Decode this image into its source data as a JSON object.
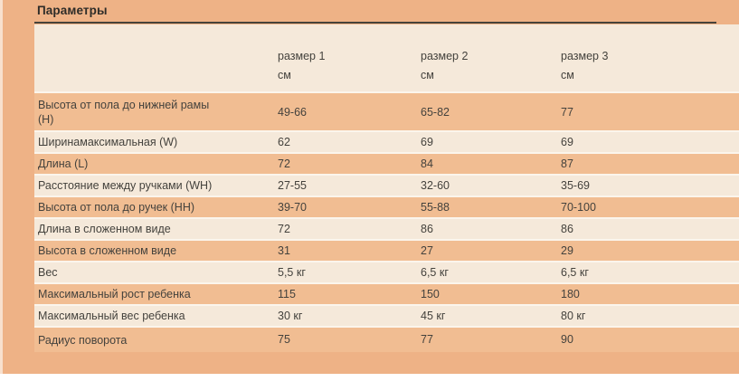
{
  "title": "Параметры",
  "table": {
    "columns": [
      {
        "label": "размер 1",
        "unit": "см"
      },
      {
        "label": "размер 2",
        "unit": "см"
      },
      {
        "label": "размер 3",
        "unit": "см"
      }
    ],
    "rows": [
      {
        "label": "Высота от пола до нижней рамы (H)",
        "values": [
          "49-66",
          "65-82",
          "77"
        ]
      },
      {
        "label": "Ширинамаксимальная (W)",
        "values": [
          "62",
          "69",
          "69"
        ]
      },
      {
        "label": "Длина (L)",
        "values": [
          "72",
          "84",
          "87"
        ]
      },
      {
        "label": "Расстояние между ручками (WH)",
        "values": [
          "27-55",
          "32-60",
          "35-69"
        ]
      },
      {
        "label": "Высота от пола до ручек (HH)",
        "values": [
          "39-70",
          "55-88",
          "70-100"
        ]
      },
      {
        "label": "Длина в сложенном виде",
        "values": [
          "72",
          "86",
          "86"
        ]
      },
      {
        "label": "Высота в сложенном виде",
        "values": [
          "31",
          "27",
          "29"
        ]
      },
      {
        "label": "Вес",
        "values": [
          "5,5 кг",
          "6,5 кг",
          "6,5 кг"
        ]
      },
      {
        "label": "Максимальный рост ребенка",
        "values": [
          "115",
          "150",
          "180"
        ]
      },
      {
        "label": "Максимальный вес ребенка",
        "values": [
          "30 кг",
          "45 кг",
          "80 кг"
        ]
      },
      {
        "label": "Радиус поворота",
        "values": [
          "75",
          "77",
          "90"
        ]
      }
    ]
  },
  "colors": {
    "panel_background": "#eeb286",
    "row_stripe_dark": "#f1bd92",
    "row_stripe_light": "#f5e9da",
    "header_background": "#f5e9da",
    "separator": "#fbf5ec",
    "text": "#44423d",
    "title_text": "#2e2c28",
    "title_underline": "#46433b"
  }
}
